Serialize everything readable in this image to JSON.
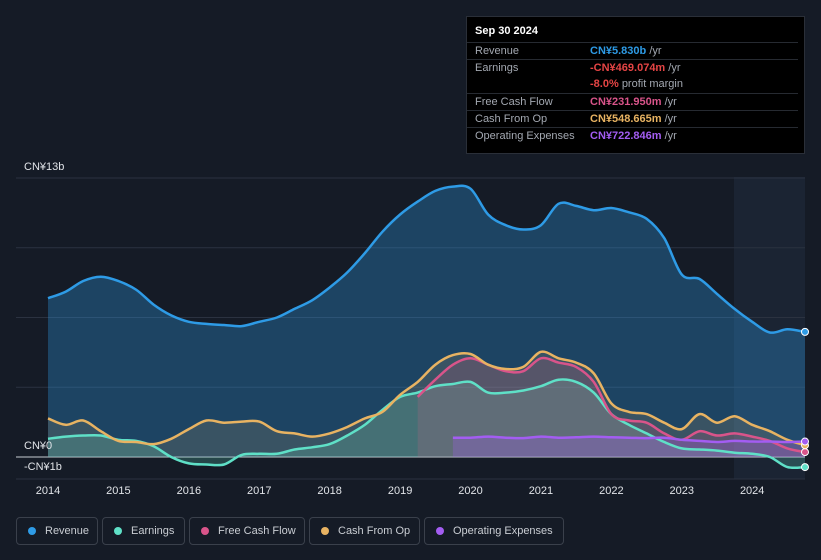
{
  "tooltip": {
    "date": "Sep 30 2024",
    "rows": [
      {
        "label": "Revenue",
        "value": "CN¥5.830b",
        "unit": "/yr",
        "color": "#2e9be6"
      },
      {
        "label": "Earnings",
        "value": "-CN¥469.074m",
        "unit": "/yr",
        "color": "#e64545"
      },
      {
        "label": "",
        "value": "-8.0%",
        "unit": "profit margin",
        "color": "#e64545"
      },
      {
        "label": "Free Cash Flow",
        "value": "CN¥231.950m",
        "unit": "/yr",
        "color": "#d9548a"
      },
      {
        "label": "Cash From Op",
        "value": "CN¥548.665m",
        "unit": "/yr",
        "color": "#e8b362"
      },
      {
        "label": "Operating Expenses",
        "value": "CN¥722.846m",
        "unit": "/yr",
        "color": "#a35df2"
      }
    ]
  },
  "legend": [
    {
      "label": "Revenue",
      "color": "#2e9be6"
    },
    {
      "label": "Earnings",
      "color": "#5fe0c7"
    },
    {
      "label": "Free Cash Flow",
      "color": "#d9548a"
    },
    {
      "label": "Cash From Op",
      "color": "#e8b362"
    },
    {
      "label": "Operating Expenses",
      "color": "#a35df2"
    }
  ],
  "chart_data": {
    "type": "area",
    "title": "",
    "xlabel": "",
    "ylabel": "",
    "y_top_label": "CN¥13b",
    "y_zero_label": "CN¥0",
    "y_bottom_label": "-CN¥1b",
    "ylim": [
      -1,
      13
    ],
    "xlim": [
      2014,
      2024.75
    ],
    "x_ticks": [
      2014,
      2015,
      2016,
      2017,
      2018,
      2019,
      2020,
      2021,
      2022,
      2023,
      2024
    ],
    "x_tick_labels": [
      "2014",
      "2015",
      "2016",
      "2017",
      "2018",
      "2019",
      "2020",
      "2021",
      "2022",
      "2023",
      "2024"
    ],
    "unit": "CN¥b",
    "series": [
      {
        "name": "Revenue",
        "color": "#2e9be6",
        "x": [
          2014,
          2014.25,
          2014.5,
          2014.75,
          2015,
          2015.25,
          2015.5,
          2015.75,
          2016,
          2016.25,
          2016.5,
          2016.75,
          2017,
          2017.25,
          2017.5,
          2017.75,
          2018,
          2018.25,
          2018.5,
          2018.75,
          2019,
          2019.25,
          2019.5,
          2019.75,
          2020,
          2020.25,
          2020.5,
          2020.75,
          2021,
          2021.25,
          2021.5,
          2021.75,
          2022,
          2022.25,
          2022.5,
          2022.75,
          2023,
          2023.25,
          2023.5,
          2023.75,
          2024,
          2024.25,
          2024.5,
          2024.75
        ],
        "values": [
          7.4,
          7.7,
          8.2,
          8.4,
          8.2,
          7.8,
          7.1,
          6.6,
          6.3,
          6.2,
          6.15,
          6.1,
          6.3,
          6.5,
          6.9,
          7.3,
          7.9,
          8.6,
          9.5,
          10.5,
          11.3,
          11.9,
          12.4,
          12.6,
          12.5,
          11.3,
          10.8,
          10.6,
          10.8,
          11.8,
          11.7,
          11.5,
          11.6,
          11.4,
          11.1,
          10.2,
          8.5,
          8.3,
          7.6,
          6.9,
          6.3,
          5.8,
          5.95,
          5.83
        ]
      },
      {
        "name": "Earnings",
        "color": "#5fe0c7",
        "x": [
          2014,
          2014.25,
          2014.5,
          2014.75,
          2015,
          2015.25,
          2015.5,
          2015.75,
          2016,
          2016.25,
          2016.5,
          2016.75,
          2017,
          2017.25,
          2017.5,
          2017.75,
          2018,
          2018.25,
          2018.5,
          2018.75,
          2019,
          2019.25,
          2019.5,
          2019.75,
          2020,
          2020.25,
          2020.5,
          2020.75,
          2021,
          2021.25,
          2021.5,
          2021.75,
          2022,
          2022.25,
          2022.5,
          2022.75,
          2023,
          2023.25,
          2023.5,
          2023.75,
          2024,
          2024.25,
          2024.5,
          2024.75
        ],
        "values": [
          0.85,
          0.95,
          1.0,
          1.0,
          0.8,
          0.75,
          0.5,
          0.0,
          -0.3,
          -0.35,
          -0.35,
          0.1,
          0.15,
          0.15,
          0.35,
          0.45,
          0.6,
          1.0,
          1.5,
          2.2,
          2.8,
          3.0,
          3.3,
          3.4,
          3.5,
          3.0,
          3.0,
          3.1,
          3.3,
          3.6,
          3.5,
          3.0,
          2.0,
          1.5,
          1.1,
          0.7,
          0.4,
          0.35,
          0.3,
          0.2,
          0.15,
          0.0,
          -0.47,
          -0.47
        ]
      },
      {
        "name": "Free Cash Flow",
        "color": "#d9548a",
        "x": [
          2019.25,
          2019.5,
          2019.75,
          2020,
          2020.25,
          2020.5,
          2020.75,
          2021,
          2021.25,
          2021.5,
          2021.75,
          2022,
          2022.25,
          2022.5,
          2022.75,
          2023,
          2023.25,
          2023.5,
          2023.75,
          2024,
          2024.25,
          2024.5,
          2024.75
        ],
        "values": [
          2.8,
          3.6,
          4.3,
          4.6,
          4.3,
          4.0,
          4.0,
          4.6,
          4.4,
          4.2,
          3.5,
          2.0,
          1.7,
          1.6,
          1.1,
          0.8,
          1.2,
          1.0,
          1.1,
          0.95,
          0.75,
          0.4,
          0.23
        ]
      },
      {
        "name": "Cash From Op",
        "color": "#e8b362",
        "x": [
          2014,
          2014.25,
          2014.5,
          2014.75,
          2015,
          2015.25,
          2015.5,
          2015.75,
          2016,
          2016.25,
          2016.5,
          2016.75,
          2017,
          2017.25,
          2017.5,
          2017.75,
          2018,
          2018.25,
          2018.5,
          2018.75,
          2019,
          2019.25,
          2019.5,
          2019.75,
          2020,
          2020.25,
          2020.5,
          2020.75,
          2021,
          2021.25,
          2021.5,
          2021.75,
          2022,
          2022.25,
          2022.5,
          2022.75,
          2023,
          2023.25,
          2023.5,
          2023.75,
          2024,
          2024.25,
          2024.5,
          2024.75
        ],
        "values": [
          1.8,
          1.5,
          1.7,
          1.2,
          0.75,
          0.7,
          0.6,
          0.85,
          1.3,
          1.7,
          1.6,
          1.65,
          1.65,
          1.2,
          1.1,
          0.95,
          1.1,
          1.4,
          1.8,
          2.1,
          2.9,
          3.5,
          4.3,
          4.75,
          4.8,
          4.3,
          4.1,
          4.2,
          4.9,
          4.6,
          4.4,
          3.9,
          2.5,
          2.1,
          2.0,
          1.6,
          1.3,
          2.0,
          1.6,
          1.9,
          1.5,
          1.2,
          0.8,
          0.55
        ]
      },
      {
        "name": "Operating Expenses",
        "color": "#a35df2",
        "x": [
          2019.75,
          2020,
          2020.25,
          2020.5,
          2020.75,
          2021,
          2021.25,
          2021.5,
          2021.75,
          2022,
          2022.25,
          2022.5,
          2022.75,
          2023,
          2023.25,
          2023.5,
          2023.75,
          2024,
          2024.25,
          2024.5,
          2024.75
        ],
        "values": [
          0.9,
          0.9,
          0.95,
          0.9,
          0.88,
          0.95,
          0.9,
          0.92,
          0.95,
          0.92,
          0.9,
          0.88,
          0.9,
          0.8,
          0.75,
          0.7,
          0.75,
          0.72,
          0.72,
          0.7,
          0.72
        ]
      }
    ]
  }
}
